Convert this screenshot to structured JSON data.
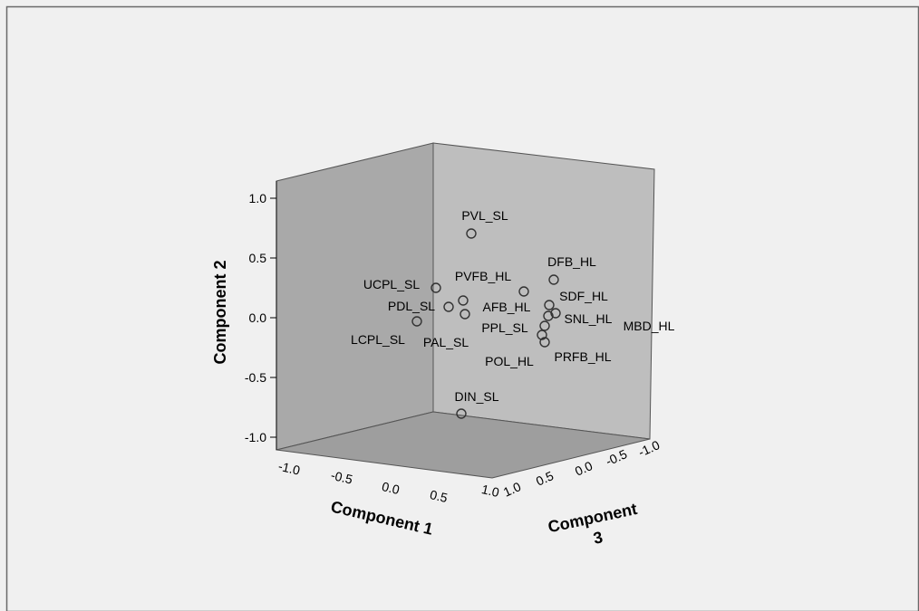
{
  "colors": {
    "background": "#f0f0f0",
    "back_wall": "#a9a9a9",
    "side_wall": "#bebebe",
    "floor": "#9e9e9e",
    "marker_stroke": "#333333"
  },
  "chart_data": {
    "type": "scatter",
    "projection": "3d",
    "title": "",
    "xlabel": "Component 1",
    "ylabel": "Component 2",
    "zlabel_line1": "Component",
    "zlabel_line2": "3",
    "xlim": [
      -1.0,
      1.0
    ],
    "ylim": [
      -1.0,
      1.0
    ],
    "zlim": [
      -1.0,
      1.0
    ],
    "x_ticks": [
      "-1.0",
      "-0.5",
      "0.0",
      "0.5",
      "1.0"
    ],
    "y_ticks": [
      "-1.0",
      "-0.5",
      "0.0",
      "0.5",
      "1.0"
    ],
    "z_ticks": [
      "1.0",
      "0.5",
      "0.0",
      "-0.5",
      "-1.0"
    ],
    "grid": false,
    "legend": "none",
    "points": [
      {
        "label": "PVL_SL",
        "x": 0.25,
        "y": 0.8,
        "z": -0.1
      },
      {
        "label": "DFB_HL",
        "x": 0.55,
        "y": 0.25,
        "z": 0.65
      },
      {
        "label": "UCPL_SL",
        "x": -0.35,
        "y": 0.25,
        "z": -0.05
      },
      {
        "label": "PVFB_HL",
        "x": 0.45,
        "y": 0.15,
        "z": 0.3
      },
      {
        "label": "PDL_SL",
        "x": -0.25,
        "y": 0.1,
        "z": 0.05
      },
      {
        "label": "AFB_HL",
        "x": 0.05,
        "y": 0.1,
        "z": 0.2
      },
      {
        "label": "SDF_HL",
        "x": 0.4,
        "y": 0.05,
        "z": 0.65
      },
      {
        "label": "SNL_HL",
        "x": 0.5,
        "y": -0.05,
        "z": 0.65
      },
      {
        "label": "MBD_HL",
        "x": 0.45,
        "y": -0.05,
        "z": 0.7
      },
      {
        "label": "PPL_SL",
        "x": 0.35,
        "y": -0.1,
        "z": 0.6
      },
      {
        "label": "LCPL_SL",
        "x": -0.55,
        "y": -0.05,
        "z": -0.1
      },
      {
        "label": "PAL_SL",
        "x": 0.1,
        "y": 0.0,
        "z": 0.15
      },
      {
        "label": "POL_HL",
        "x": 0.35,
        "y": -0.2,
        "z": 0.6
      },
      {
        "label": "PRFB_HL",
        "x": 0.35,
        "y": -0.25,
        "z": 0.7
      },
      {
        "label": "DIN_SL",
        "x": 0.25,
        "y": -0.75,
        "z": 0.05
      }
    ]
  }
}
